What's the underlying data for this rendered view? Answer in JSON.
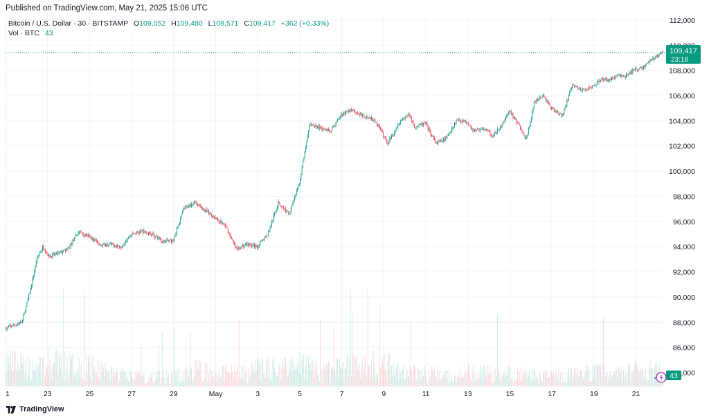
{
  "header": {
    "published": "Published on TradingView.com, May 21, 2025 15:06 UTC"
  },
  "legend": {
    "symbol": "Bitcoin / U.S. Dollar · 30 · BITSTAMP",
    "o_label": "O",
    "o_value": "109,052",
    "h_label": "H",
    "h_value": "109,480",
    "l_label": "L",
    "l_value": "108,571",
    "c_label": "C",
    "c_value": "109,417",
    "change": "+362 (+0.33%)",
    "vol_label": "Vol · BTC",
    "vol_value": "43"
  },
  "price_label": {
    "price": "109,417",
    "countdown": "23:18"
  },
  "volume_label": "43",
  "footer": {
    "brand": "TradingView"
  },
  "colors": {
    "up": "#089981",
    "down": "#f23645",
    "grid": "#f0f3fa",
    "text": "#131722"
  },
  "chart_data": {
    "type": "candlestick",
    "interval": "30",
    "ylim": [
      82900,
      112600
    ],
    "y_ticks": [
      "84,000",
      "86,000",
      "88,000",
      "90,000",
      "92,000",
      "94,000",
      "96,000",
      "98,000",
      "100,000",
      "102,000",
      "104,000",
      "106,000",
      "108,000",
      "110,000",
      "112,000"
    ],
    "y_tick_values": [
      84000,
      86000,
      88000,
      90000,
      92000,
      94000,
      96000,
      98000,
      100000,
      102000,
      104000,
      106000,
      108000,
      110000,
      112000
    ],
    "x_ticks": [
      "1",
      "23",
      "25",
      "27",
      "29",
      "May",
      "3",
      "5",
      "7",
      "9",
      "11",
      "13",
      "15",
      "17",
      "19",
      "21"
    ],
    "x_tick_days": [
      0,
      2,
      4,
      6,
      8,
      10,
      12,
      14,
      16,
      18,
      20,
      22,
      24,
      26,
      28,
      30
    ],
    "x_range_days": [
      0,
      31.3
    ],
    "path_days": [
      0,
      0.8,
      1.2,
      1.5,
      1.8,
      2.1,
      2.4,
      3.0,
      3.5,
      4.0,
      4.6,
      5.0,
      5.5,
      6.0,
      6.5,
      7.0,
      7.5,
      8.0,
      8.5,
      9.0,
      9.5,
      10.0,
      10.5,
      11.0,
      11.5,
      12.0,
      12.5,
      13.0,
      13.5,
      14.0,
      14.5,
      15.0,
      15.5,
      16.0,
      16.5,
      17.0,
      17.5,
      17.8,
      18.2,
      18.8,
      19.2,
      19.5,
      20.0,
      20.5,
      21.0,
      21.5,
      22.0,
      22.3,
      22.8,
      23.2,
      23.6,
      24.0,
      24.4,
      24.8,
      25.2,
      25.6,
      26.0,
      26.5,
      27.0,
      27.5,
      28.0,
      28.3,
      28.6,
      28.9,
      29.2,
      29.5,
      29.8,
      30.1,
      30.4,
      30.7,
      31.0,
      31.25
    ],
    "path_prices": [
      87500,
      88000,
      90500,
      93000,
      94000,
      93200,
      93400,
      93800,
      95200,
      94800,
      94100,
      94200,
      94000,
      95000,
      95200,
      95000,
      94400,
      94500,
      97000,
      97500,
      96900,
      96300,
      95600,
      93800,
      94200,
      94000,
      95000,
      97500,
      96600,
      99000,
      103800,
      103400,
      103200,
      104500,
      104900,
      104400,
      104100,
      103500,
      102200,
      104000,
      104500,
      103500,
      103800,
      102200,
      102600,
      104100,
      103900,
      103200,
      103400,
      102800,
      103500,
      104800,
      103800,
      102500,
      105500,
      106000,
      105000,
      104400,
      106800,
      106400,
      106800,
      107300,
      107200,
      107400,
      107600,
      107500,
      107900,
      108100,
      108300,
      108800,
      109100,
      109417
    ],
    "volume_max": 800,
    "volume_profile_days": [
      0,
      1.2,
      1.8,
      3.0,
      4.2,
      5.0,
      6.0,
      8.0,
      9.0,
      10.0,
      11.5,
      12.0,
      12.5,
      13.2,
      14.0,
      15.0,
      16.0,
      17.0,
      19.0,
      20.0,
      21.0,
      22.0,
      24.0,
      26.0,
      27.0,
      28.0,
      29.0,
      30.0,
      31.0
    ],
    "volume_profile_values": [
      230,
      180,
      220,
      200,
      190,
      120,
      100,
      100,
      160,
      140,
      110,
      180,
      200,
      160,
      220,
      120,
      190,
      220,
      160,
      120,
      100,
      130,
      120,
      100,
      110,
      140,
      110,
      160,
      140
    ]
  }
}
